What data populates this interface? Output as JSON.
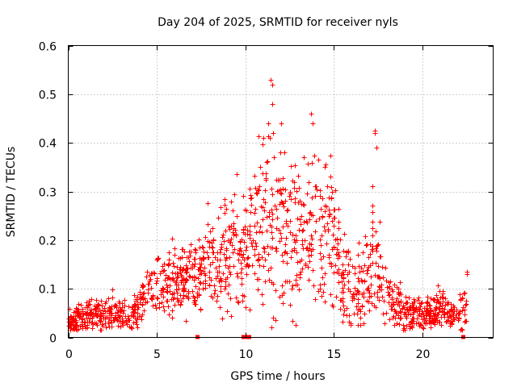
{
  "chart_data": {
    "type": "scatter",
    "title": "Day 204 of 2025, SRMTID for receiver nyls",
    "xlabel": "GPS time / hours",
    "ylabel": "SRMTID / TECUs",
    "xlim": [
      0,
      24
    ],
    "ylim": [
      0,
      0.6
    ],
    "x_ticks": [
      0,
      5,
      10,
      15,
      20
    ],
    "x_tick_labels": [
      "0",
      "5",
      "10",
      "15",
      "20"
    ],
    "y_ticks": [
      0,
      0.1,
      0.2,
      0.3,
      0.4,
      0.5,
      0.6
    ],
    "y_tick_labels": [
      "0",
      "0.1",
      "0.2",
      "0.3",
      "0.4",
      "0.5",
      "0.6"
    ],
    "grid": true,
    "marker": "plus",
    "color": "#ff0000",
    "series": [
      {
        "name": "SRMTID",
        "trend": [
          {
            "x": 0.0,
            "y": 0.035,
            "spread": 0.012
          },
          {
            "x": 1.0,
            "y": 0.04,
            "spread": 0.015
          },
          {
            "x": 2.0,
            "y": 0.055,
            "spread": 0.018
          },
          {
            "x": 3.0,
            "y": 0.045,
            "spread": 0.015
          },
          {
            "x": 3.6,
            "y": 0.04,
            "spread": 0.012
          },
          {
            "x": 4.3,
            "y": 0.09,
            "spread": 0.025
          },
          {
            "x": 5.0,
            "y": 0.11,
            "spread": 0.03
          },
          {
            "x": 6.0,
            "y": 0.115,
            "spread": 0.03
          },
          {
            "x": 7.0,
            "y": 0.12,
            "spread": 0.035
          },
          {
            "x": 8.0,
            "y": 0.15,
            "spread": 0.05
          },
          {
            "x": 9.0,
            "y": 0.16,
            "spread": 0.06
          },
          {
            "x": 10.0,
            "y": 0.17,
            "spread": 0.06
          },
          {
            "x": 11.0,
            "y": 0.24,
            "spread": 0.09
          },
          {
            "x": 12.0,
            "y": 0.22,
            "spread": 0.09
          },
          {
            "x": 13.0,
            "y": 0.2,
            "spread": 0.07
          },
          {
            "x": 14.0,
            "y": 0.22,
            "spread": 0.07
          },
          {
            "x": 15.0,
            "y": 0.2,
            "spread": 0.07
          },
          {
            "x": 15.5,
            "y": 0.12,
            "spread": 0.05
          },
          {
            "x": 16.5,
            "y": 0.09,
            "spread": 0.035
          },
          {
            "x": 17.3,
            "y": 0.15,
            "spread": 0.06
          },
          {
            "x": 18.0,
            "y": 0.08,
            "spread": 0.025
          },
          {
            "x": 19.0,
            "y": 0.055,
            "spread": 0.018
          },
          {
            "x": 20.0,
            "y": 0.05,
            "spread": 0.018
          },
          {
            "x": 21.0,
            "y": 0.06,
            "spread": 0.02
          },
          {
            "x": 22.0,
            "y": 0.045,
            "spread": 0.015
          },
          {
            "x": 22.5,
            "y": 0.05,
            "spread": 0.03
          }
        ],
        "x_range": [
          0,
          22.5
        ],
        "sample_count": 1500,
        "spikes": [
          {
            "x": 9.5,
            "y": 0.335
          },
          {
            "x": 9.2,
            "y": 0.28
          },
          {
            "x": 11.0,
            "y": 0.41
          },
          {
            "x": 11.2,
            "y": 0.36
          },
          {
            "x": 11.45,
            "y": 0.53
          },
          {
            "x": 11.5,
            "y": 0.52
          },
          {
            "x": 11.5,
            "y": 0.48
          },
          {
            "x": 11.6,
            "y": 0.37
          },
          {
            "x": 12.0,
            "y": 0.44
          },
          {
            "x": 12.2,
            "y": 0.38
          },
          {
            "x": 13.3,
            "y": 0.37
          },
          {
            "x": 13.7,
            "y": 0.46
          },
          {
            "x": 13.8,
            "y": 0.44
          },
          {
            "x": 14.5,
            "y": 0.35
          },
          {
            "x": 14.9,
            "y": 0.3
          },
          {
            "x": 17.3,
            "y": 0.425
          },
          {
            "x": 17.3,
            "y": 0.42
          },
          {
            "x": 17.4,
            "y": 0.39
          },
          {
            "x": 17.2,
            "y": 0.31
          },
          {
            "x": 22.5,
            "y": 0.135
          },
          {
            "x": 22.5,
            "y": 0.13
          }
        ],
        "zero_markers_x": [
          7.3,
          9.9,
          10.0,
          10.2,
          22.3
        ]
      }
    ]
  }
}
